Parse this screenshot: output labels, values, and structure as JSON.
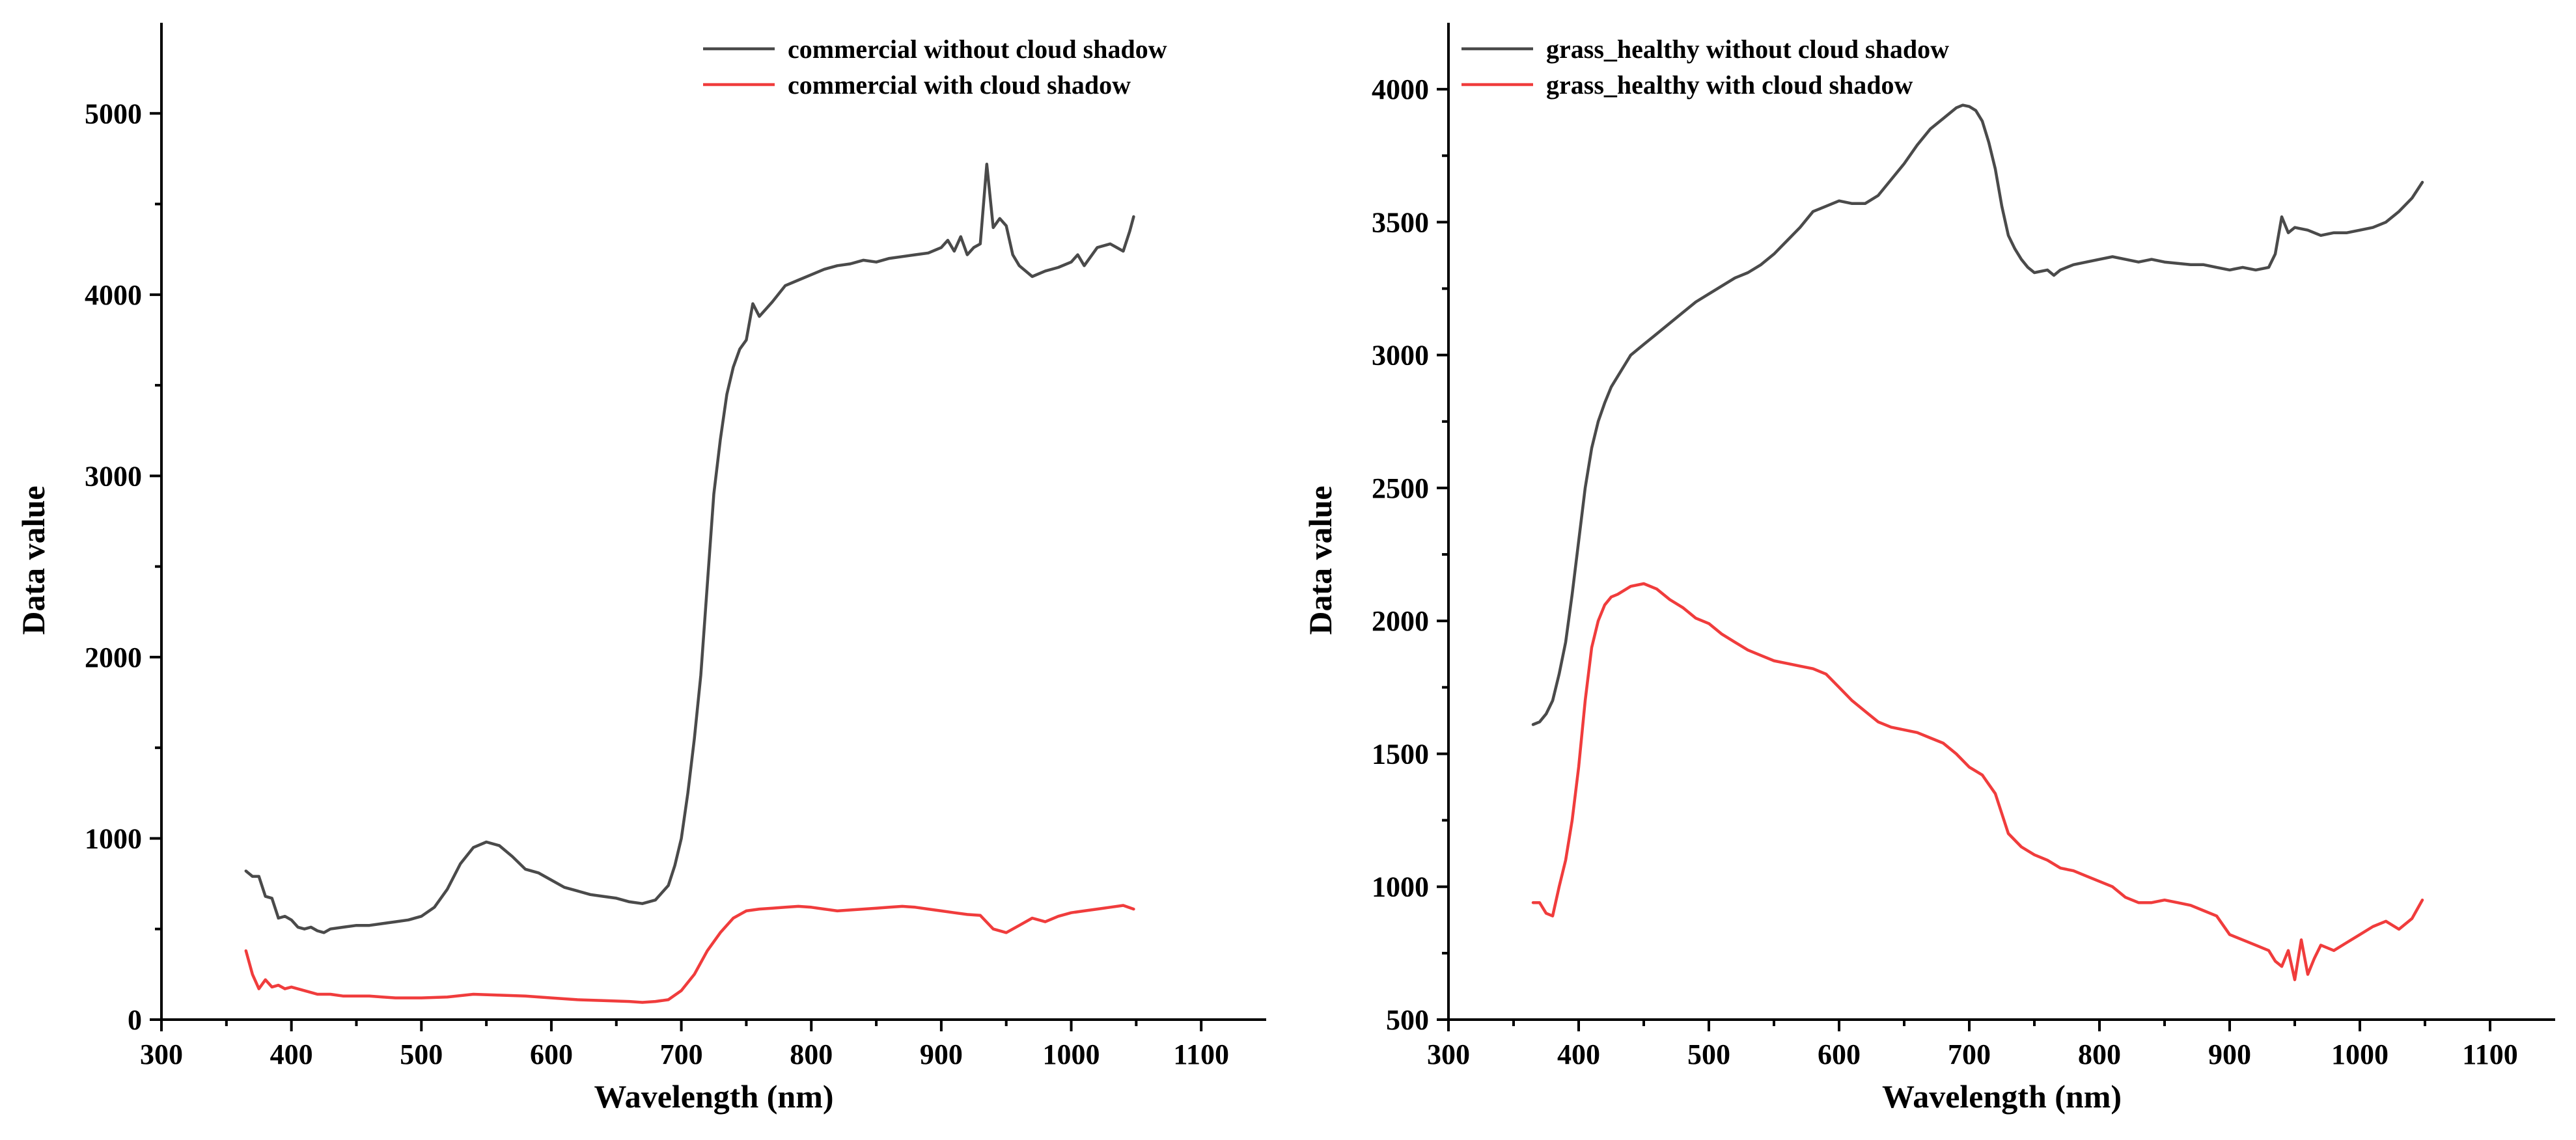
{
  "chart_data": [
    {
      "type": "line",
      "xlabel": "Wavelength (nm)",
      "ylabel": "Data value",
      "xlim": [
        300,
        1150
      ],
      "ylim": [
        0,
        5500
      ],
      "xticks": [
        300,
        400,
        500,
        600,
        700,
        800,
        900,
        1000,
        1100
      ],
      "yticks": [
        0,
        1000,
        2000,
        3000,
        4000,
        5000
      ],
      "legend_position": "top-right",
      "series": [
        {
          "name": "commercial without cloud shadow",
          "color": "#4a4a4a",
          "x": [
            365,
            370,
            375,
            380,
            385,
            390,
            395,
            400,
            405,
            410,
            415,
            420,
            425,
            430,
            440,
            450,
            460,
            470,
            480,
            490,
            500,
            510,
            520,
            530,
            540,
            550,
            560,
            570,
            580,
            590,
            600,
            610,
            620,
            630,
            640,
            650,
            660,
            670,
            680,
            690,
            695,
            700,
            705,
            710,
            715,
            720,
            725,
            730,
            735,
            740,
            745,
            750,
            755,
            760,
            765,
            770,
            780,
            790,
            800,
            810,
            820,
            830,
            840,
            850,
            860,
            870,
            880,
            890,
            900,
            905,
            910,
            915,
            920,
            925,
            930,
            935,
            940,
            945,
            950,
            955,
            960,
            970,
            980,
            990,
            1000,
            1005,
            1010,
            1020,
            1030,
            1035,
            1040,
            1045,
            1048
          ],
          "values": [
            820,
            790,
            790,
            680,
            670,
            560,
            570,
            550,
            510,
            500,
            510,
            490,
            480,
            500,
            510,
            520,
            520,
            530,
            540,
            550,
            570,
            620,
            720,
            860,
            950,
            980,
            960,
            900,
            830,
            810,
            770,
            730,
            710,
            690,
            680,
            670,
            650,
            640,
            660,
            740,
            850,
            1000,
            1250,
            1550,
            1900,
            2400,
            2900,
            3200,
            3450,
            3600,
            3700,
            3750,
            3950,
            3880,
            3920,
            3960,
            4050,
            4080,
            4110,
            4140,
            4160,
            4170,
            4190,
            4180,
            4200,
            4210,
            4220,
            4230,
            4260,
            4300,
            4240,
            4320,
            4220,
            4260,
            4280,
            4720,
            4370,
            4420,
            4380,
            4220,
            4160,
            4100,
            4130,
            4150,
            4180,
            4220,
            4160,
            4260,
            4280,
            4260,
            4240,
            4350,
            4430
          ]
        },
        {
          "name": "commercial with cloud shadow",
          "color": "#f03c3c",
          "x": [
            365,
            370,
            375,
            380,
            385,
            390,
            395,
            400,
            410,
            420,
            430,
            440,
            450,
            460,
            470,
            480,
            490,
            500,
            520,
            540,
            560,
            580,
            600,
            620,
            640,
            660,
            670,
            680,
            690,
            700,
            710,
            720,
            730,
            740,
            750,
            760,
            770,
            780,
            790,
            800,
            810,
            820,
            830,
            840,
            850,
            860,
            870,
            880,
            890,
            900,
            910,
            920,
            930,
            940,
            950,
            960,
            970,
            980,
            990,
            1000,
            1010,
            1020,
            1030,
            1040,
            1048
          ],
          "values": [
            380,
            250,
            170,
            220,
            180,
            190,
            170,
            180,
            160,
            140,
            140,
            130,
            130,
            130,
            125,
            120,
            120,
            120,
            125,
            140,
            135,
            130,
            120,
            110,
            105,
            100,
            95,
            100,
            110,
            160,
            250,
            380,
            480,
            560,
            600,
            610,
            615,
            620,
            625,
            620,
            610,
            600,
            605,
            610,
            615,
            620,
            625,
            620,
            610,
            600,
            590,
            580,
            575,
            500,
            480,
            520,
            560,
            540,
            570,
            590,
            600,
            610,
            620,
            630,
            610
          ]
        }
      ]
    },
    {
      "type": "line",
      "xlabel": "Wavelength (nm)",
      "ylabel": "Data value",
      "xlim": [
        300,
        1150
      ],
      "ylim": [
        500,
        4250
      ],
      "xticks": [
        300,
        400,
        500,
        600,
        700,
        800,
        900,
        1000,
        1100
      ],
      "yticks": [
        500,
        1000,
        1500,
        2000,
        2500,
        3000,
        3500,
        4000
      ],
      "legend_position": "top-left",
      "series": [
        {
          "name": "grass_healthy without cloud shadow",
          "color": "#4a4a4a",
          "x": [
            365,
            370,
            375,
            380,
            385,
            390,
            395,
            400,
            405,
            410,
            415,
            420,
            425,
            430,
            435,
            440,
            445,
            450,
            460,
            470,
            480,
            490,
            500,
            510,
            520,
            530,
            540,
            550,
            560,
            570,
            580,
            590,
            600,
            610,
            620,
            630,
            640,
            650,
            660,
            670,
            680,
            690,
            695,
            700,
            705,
            710,
            715,
            720,
            725,
            730,
            735,
            740,
            745,
            750,
            760,
            765,
            770,
            780,
            790,
            800,
            810,
            820,
            830,
            840,
            850,
            860,
            870,
            880,
            890,
            900,
            910,
            920,
            930,
            935,
            940,
            945,
            950,
            960,
            970,
            980,
            990,
            1000,
            1010,
            1020,
            1030,
            1040,
            1048
          ],
          "values": [
            1610,
            1620,
            1650,
            1700,
            1800,
            1920,
            2100,
            2300,
            2500,
            2650,
            2750,
            2820,
            2880,
            2920,
            2960,
            3000,
            3020,
            3040,
            3080,
            3120,
            3160,
            3200,
            3230,
            3260,
            3290,
            3310,
            3340,
            3380,
            3430,
            3480,
            3540,
            3560,
            3580,
            3570,
            3570,
            3600,
            3660,
            3720,
            3790,
            3850,
            3890,
            3930,
            3940,
            3935,
            3920,
            3880,
            3800,
            3700,
            3560,
            3450,
            3400,
            3360,
            3330,
            3310,
            3320,
            3300,
            3320,
            3340,
            3350,
            3360,
            3370,
            3360,
            3350,
            3360,
            3350,
            3345,
            3340,
            3340,
            3330,
            3320,
            3330,
            3320,
            3330,
            3380,
            3520,
            3460,
            3480,
            3470,
            3450,
            3460,
            3460,
            3470,
            3480,
            3500,
            3540,
            3590,
            3650
          ]
        },
        {
          "name": "grass_healthy with cloud shadow",
          "color": "#f03c3c",
          "x": [
            365,
            370,
            375,
            380,
            385,
            390,
            395,
            400,
            405,
            410,
            415,
            420,
            425,
            430,
            440,
            450,
            460,
            470,
            480,
            490,
            500,
            510,
            520,
            530,
            540,
            550,
            560,
            570,
            580,
            590,
            600,
            610,
            620,
            630,
            640,
            650,
            660,
            670,
            680,
            690,
            700,
            710,
            720,
            730,
            740,
            750,
            760,
            770,
            780,
            790,
            800,
            810,
            820,
            830,
            840,
            850,
            860,
            870,
            880,
            890,
            900,
            910,
            920,
            930,
            935,
            940,
            945,
            950,
            955,
            960,
            965,
            970,
            980,
            990,
            1000,
            1010,
            1020,
            1030,
            1040,
            1048
          ],
          "values": [
            940,
            940,
            900,
            890,
            1000,
            1100,
            1250,
            1450,
            1700,
            1900,
            2000,
            2060,
            2090,
            2100,
            2130,
            2140,
            2120,
            2080,
            2050,
            2010,
            1990,
            1950,
            1920,
            1890,
            1870,
            1850,
            1840,
            1830,
            1820,
            1800,
            1750,
            1700,
            1660,
            1620,
            1600,
            1590,
            1580,
            1560,
            1540,
            1500,
            1450,
            1420,
            1350,
            1200,
            1150,
            1120,
            1100,
            1070,
            1060,
            1040,
            1020,
            1000,
            960,
            940,
            940,
            950,
            940,
            930,
            910,
            890,
            820,
            800,
            780,
            760,
            720,
            700,
            760,
            650,
            800,
            670,
            730,
            780,
            760,
            790,
            820,
            850,
            870,
            840,
            880,
            950
          ]
        }
      ]
    }
  ]
}
